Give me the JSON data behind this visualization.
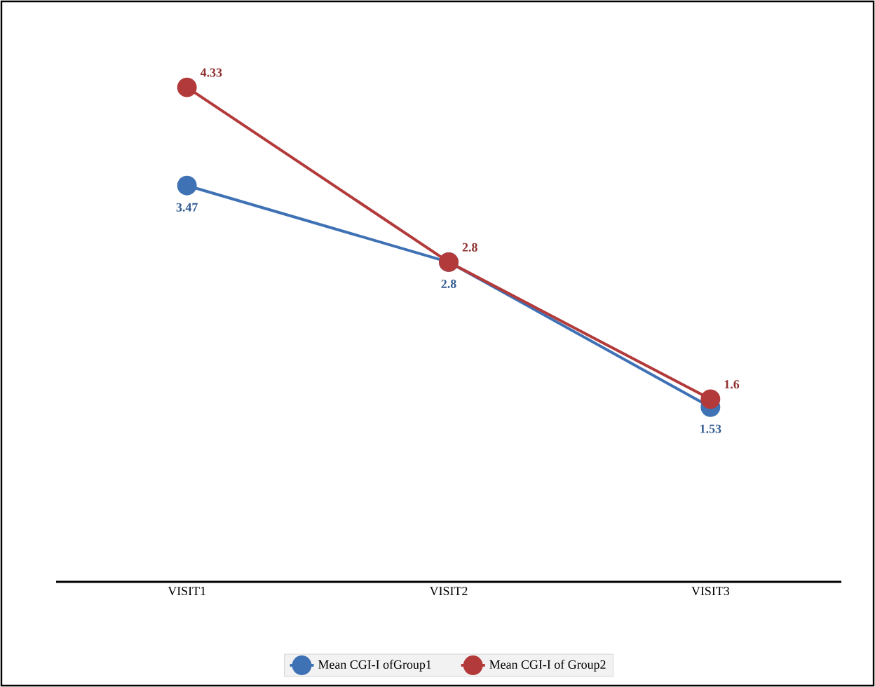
{
  "chart_data": {
    "type": "line",
    "categories": [
      "VISIT1",
      "VISIT2",
      "VISIT3"
    ],
    "series": [
      {
        "name": "Mean CGI-I ofGroup1",
        "color": "#3f72b5",
        "values": [
          3.47,
          2.8,
          1.53
        ]
      },
      {
        "name": "Mean CGI-I of Group2",
        "color": "#b33a3a",
        "values": [
          4.33,
          2.8,
          1.6
        ]
      }
    ],
    "data_labels": true,
    "legend": "bottom",
    "marker": "circle",
    "line_style": "solid",
    "grid": false
  }
}
